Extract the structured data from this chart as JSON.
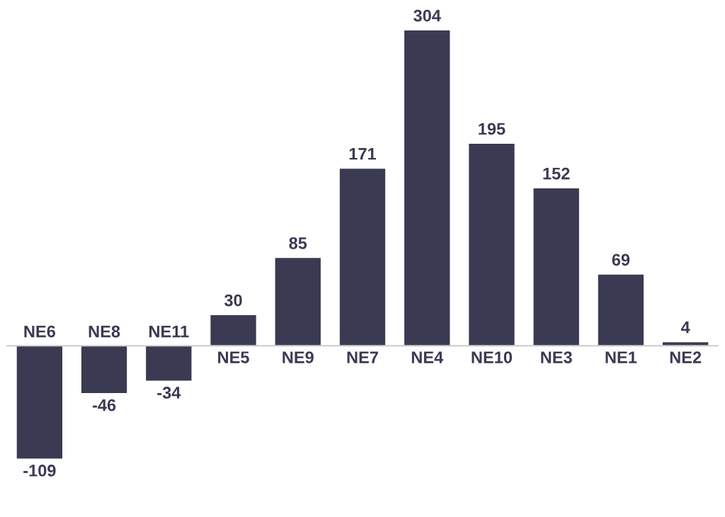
{
  "chart_data": {
    "type": "bar",
    "categories": [
      "NE6",
      "NE8",
      "NE11",
      "NE5",
      "NE9",
      "NE7",
      "NE4",
      "NE10",
      "NE3",
      "NE1",
      "NE2"
    ],
    "values": [
      -109,
      -46,
      -34,
      30,
      85,
      171,
      304,
      195,
      152,
      69,
      4
    ],
    "color": "#3a3a52",
    "data_labels": true
  }
}
